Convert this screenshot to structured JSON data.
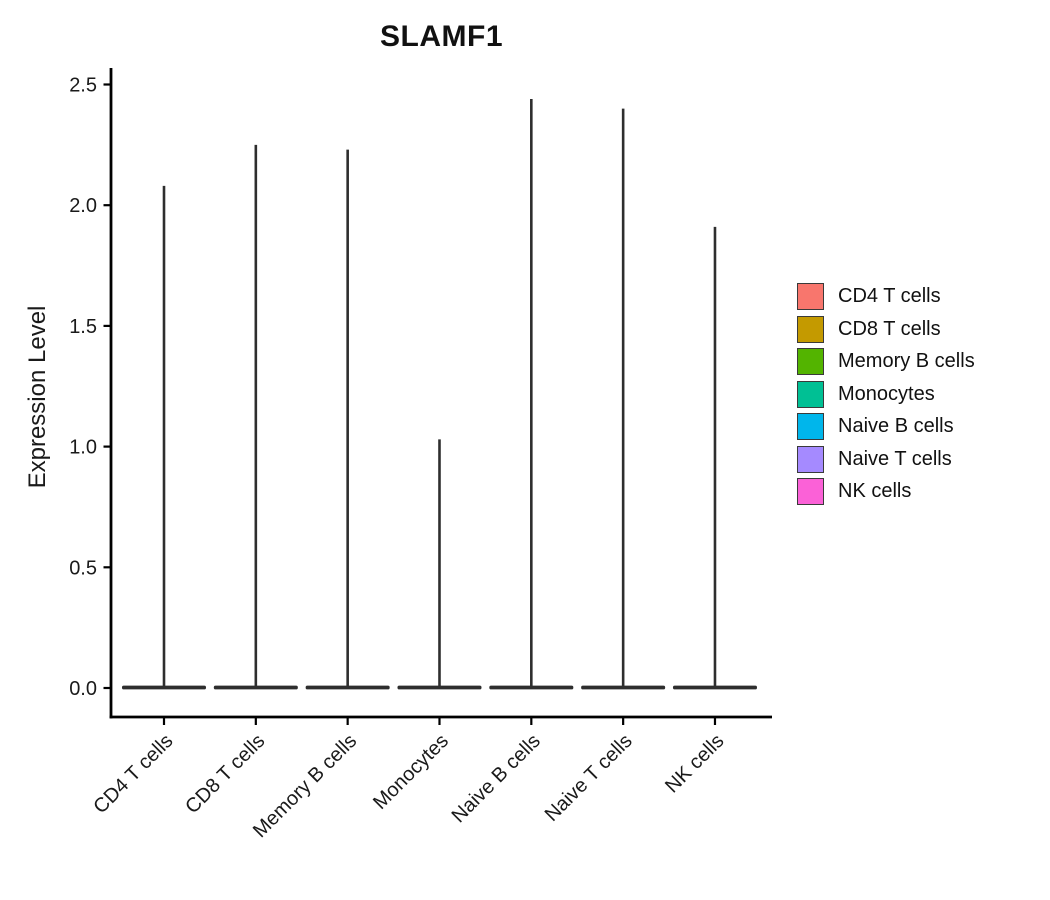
{
  "title": "SLAMF1",
  "chart_data": {
    "type": "violin",
    "title": "SLAMF1",
    "ylabel": "Expression Level",
    "ylim": [
      0,
      2.5
    ],
    "y_ticks": [
      0,
      0.5,
      1,
      1.5,
      2,
      2.5
    ],
    "y_tick_labels": [
      "0.0",
      "0.5",
      "1.0",
      "1.5",
      "2.0",
      "2.5"
    ],
    "categories": [
      "CD4 T cells",
      "CD8 T cells",
      "Memory B cells",
      "Monocytes",
      "Naive B cells",
      "Naive T cells",
      "NK cells"
    ],
    "series": [
      {
        "name": "CD4 T cells",
        "color": "#F8766D",
        "max": 2.08,
        "mode": 0
      },
      {
        "name": "CD8 T cells",
        "color": "#C49A00",
        "max": 2.25,
        "mode": 0
      },
      {
        "name": "Memory B cells",
        "color": "#53B400",
        "max": 2.23,
        "mode": 0
      },
      {
        "name": "Monocytes",
        "color": "#00C094",
        "max": 1.03,
        "mode": 0
      },
      {
        "name": "Naive B cells",
        "color": "#00B6EB",
        "max": 2.44,
        "mode": 0
      },
      {
        "name": "Naive T cells",
        "color": "#A58AFF",
        "max": 2.4,
        "mode": 0
      },
      {
        "name": "NK cells",
        "color": "#FB61D7",
        "max": 1.91,
        "mode": 0
      }
    ],
    "distribution_note": "each violin is a narrow spike: dense mass at 0 with thin tail up to max",
    "legend_position": "right",
    "grid": false,
    "outline_color": "#2e2e2e",
    "axis_color": "#000000"
  }
}
